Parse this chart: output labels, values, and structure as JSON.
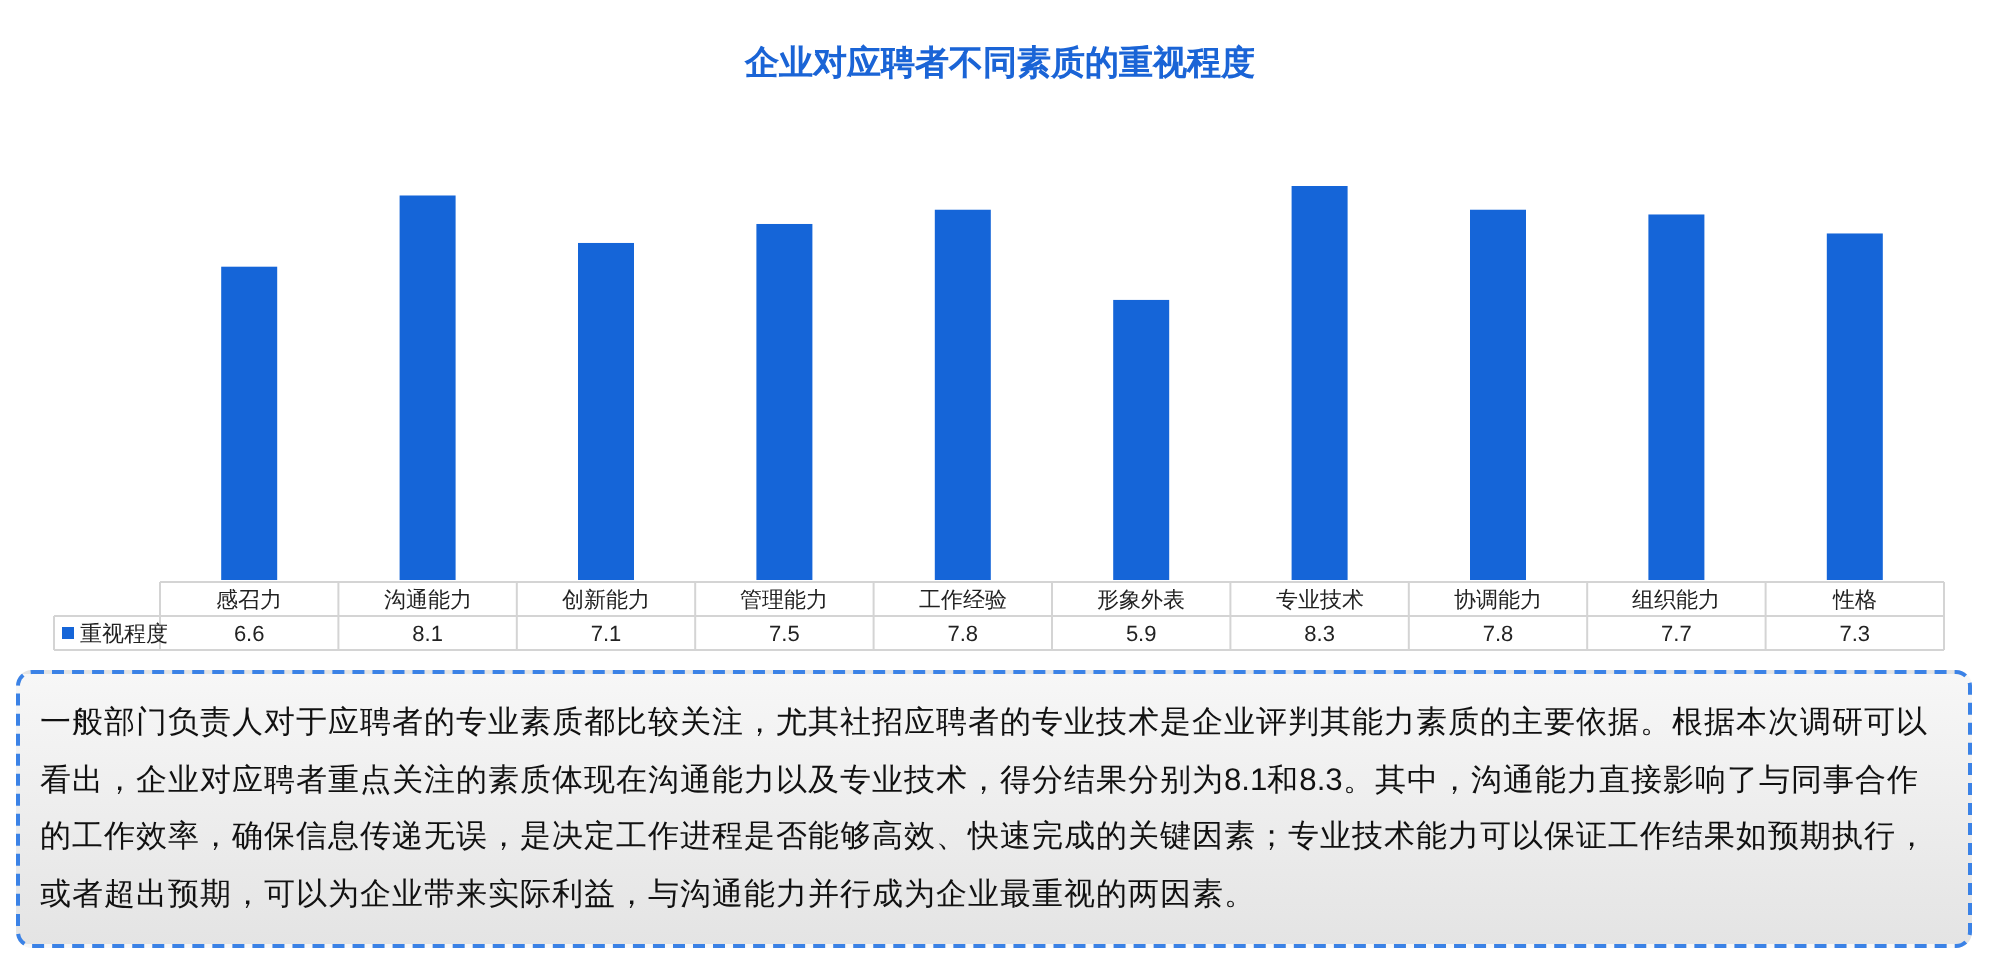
{
  "chart_data": {
    "type": "bar",
    "title": "企业对应聘者不同素质的重视程度",
    "categories": [
      "感召力",
      "沟通能力",
      "创新能力",
      "管理能力",
      "工作经验",
      "形象外表",
      "专业技术",
      "协调能力",
      "组织能力",
      "性格"
    ],
    "series": [
      {
        "name": "重视程度",
        "color": "#1565d8",
        "values": [
          6.6,
          8.1,
          7.1,
          7.5,
          7.8,
          5.9,
          8.3,
          7.8,
          7.7,
          7.3
        ]
      }
    ],
    "data_labels": true,
    "legend": "bottom left",
    "tick_labels": "x",
    "annotations": [
      "一般部门负责人对于应聘者的专业素质都比较关注，尤其社招应聘者的专业技术是企业评判其能力素质的主要依据。根据本次调研可以看出，企业对应聘者重点关注的素质体现在沟通能力以及专业技术，得分结果分别为8.1和8.3。其中，沟通能力直接影响了与同事合作的工作效率，确保信息传递无误，是决定工作进程是否能够高效、快速完成的关键因素；专业技术能力可以保证工作结果如预期执行，或者超出预期，可以为企业带来实际利益，与沟通能力并行成为企业最重视的两因素。"
    ]
  }
}
